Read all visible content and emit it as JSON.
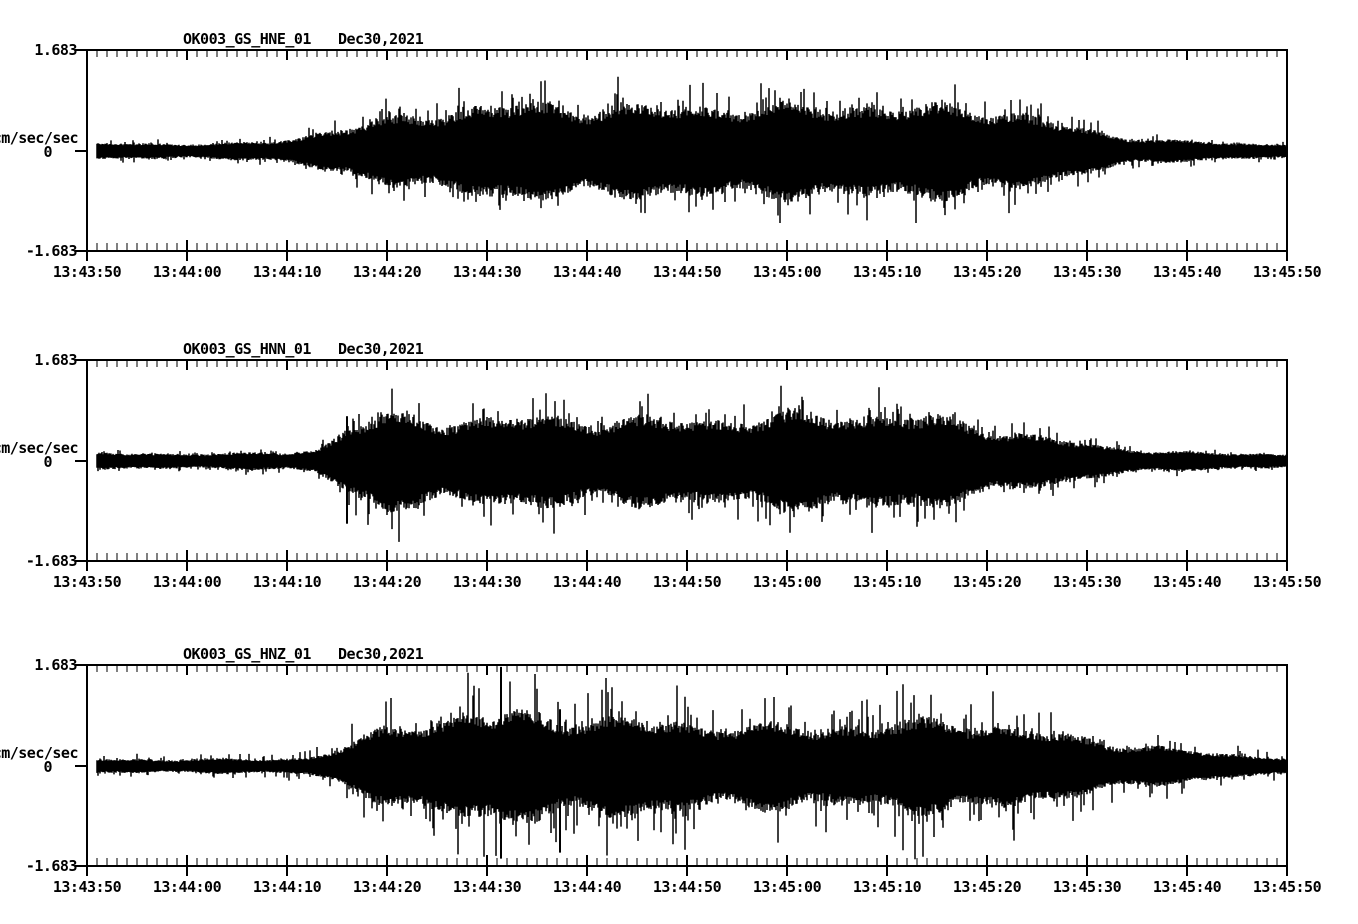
{
  "figure": {
    "background_color": "#ffffff",
    "trace_color": "#000000",
    "axis_color": "#000000"
  },
  "axes": {
    "y_axis_unit": "cm/sec/sec",
    "y_tick_labels": [
      "1.683",
      "0",
      "-1.683"
    ],
    "ylim": [
      -1.683,
      1.683
    ],
    "duration_s": 120,
    "x_major_tick_interval_s": 10,
    "x_minor_tick_interval_s": 1,
    "x_tick_labels": [
      "13:43:50",
      "13:44:00",
      "13:44:10",
      "13:44:20",
      "13:44:30",
      "13:44:40",
      "13:44:50",
      "13:45:00",
      "13:45:10",
      "13:45:20",
      "13:45:30",
      "13:45:40",
      "13:45:50"
    ]
  },
  "chart_data": [
    {
      "type": "line",
      "panel": 1,
      "station_channel": "OK003_GS_HNE_01",
      "date_label": "Dec30,2021",
      "units": "cm/sec/sec",
      "time_start": "13:43:50",
      "time_end": "13:45:50",
      "ylim": [
        -1.683,
        1.683
      ],
      "seed": 11,
      "spikiness": 0.55,
      "envelope_t_amp": [
        [
          0,
          0.17
        ],
        [
          14,
          0.17
        ],
        [
          18,
          0.2
        ],
        [
          21,
          0.3
        ],
        [
          24,
          0.45
        ],
        [
          27,
          0.55
        ],
        [
          30,
          0.68
        ],
        [
          34,
          0.85
        ],
        [
          38,
          0.95
        ],
        [
          44,
          1.02
        ],
        [
          50,
          1.0
        ],
        [
          56,
          0.95
        ],
        [
          62,
          1.0
        ],
        [
          68,
          0.95
        ],
        [
          73,
          1.04
        ],
        [
          78,
          1.0
        ],
        [
          83,
          0.94
        ],
        [
          88,
          1.0
        ],
        [
          92,
          0.88
        ],
        [
          96,
          0.66
        ],
        [
          100,
          0.46
        ],
        [
          104,
          0.32
        ],
        [
          108,
          0.24
        ],
        [
          112,
          0.19
        ],
        [
          116,
          0.17
        ],
        [
          120,
          0.16
        ]
      ],
      "extreme_spikes": []
    },
    {
      "type": "line",
      "panel": 2,
      "station_channel": "OK003_GS_HNN_01",
      "date_label": "Dec30,2021",
      "units": "cm/sec/sec",
      "time_start": "13:43:50",
      "time_end": "13:45:50",
      "ylim": [
        -1.683,
        1.683
      ],
      "seed": 23,
      "spikiness": 0.55,
      "envelope_t_amp": [
        [
          0,
          0.17
        ],
        [
          16,
          0.17
        ],
        [
          20,
          0.19
        ],
        [
          23,
          0.26
        ],
        [
          25,
          0.55
        ],
        [
          27,
          0.85
        ],
        [
          30,
          1.0
        ],
        [
          34,
          0.97
        ],
        [
          40,
          0.92
        ],
        [
          46,
          0.97
        ],
        [
          52,
          0.92
        ],
        [
          58,
          0.9
        ],
        [
          64,
          0.94
        ],
        [
          70,
          1.0
        ],
        [
          76,
          1.06
        ],
        [
          82,
          1.0
        ],
        [
          86,
          0.9
        ],
        [
          90,
          0.74
        ],
        [
          94,
          0.58
        ],
        [
          98,
          0.44
        ],
        [
          102,
          0.32
        ],
        [
          106,
          0.24
        ],
        [
          110,
          0.19
        ],
        [
          114,
          0.17
        ],
        [
          120,
          0.16
        ]
      ],
      "extreme_spikes": [
        {
          "t": 26.0,
          "up": 0.75,
          "down": 1.05
        }
      ]
    },
    {
      "type": "line",
      "panel": 3,
      "station_channel": "OK003_GS_HNZ_01",
      "date_label": "Dec30,2021",
      "units": "cm/sec/sec",
      "time_start": "13:43:50",
      "time_end": "13:45:50",
      "ylim": [
        -1.683,
        1.683
      ],
      "seed": 37,
      "spikiness": 0.8,
      "envelope_t_amp": [
        [
          0,
          0.15
        ],
        [
          18,
          0.15
        ],
        [
          22,
          0.19
        ],
        [
          25,
          0.36
        ],
        [
          28,
          0.64
        ],
        [
          31,
          0.88
        ],
        [
          34,
          1.04
        ],
        [
          38,
          1.12
        ],
        [
          43,
          1.16
        ],
        [
          48,
          1.1
        ],
        [
          53,
          1.05
        ],
        [
          58,
          0.98
        ],
        [
          63,
          0.92
        ],
        [
          68,
          0.88
        ],
        [
          73,
          0.86
        ],
        [
          78,
          0.9
        ],
        [
          83,
          0.95
        ],
        [
          88,
          1.0
        ],
        [
          91,
          0.92
        ],
        [
          94,
          0.8
        ],
        [
          98,
          0.66
        ],
        [
          102,
          0.54
        ],
        [
          106,
          0.44
        ],
        [
          110,
          0.34
        ],
        [
          114,
          0.26
        ],
        [
          118,
          0.21
        ],
        [
          120,
          0.2
        ]
      ],
      "extreme_spikes": [
        {
          "t": 41.4,
          "up": 1.66,
          "down": 1.55
        },
        {
          "t": 47.3,
          "up": 0.95,
          "down": 1.45
        }
      ]
    }
  ]
}
